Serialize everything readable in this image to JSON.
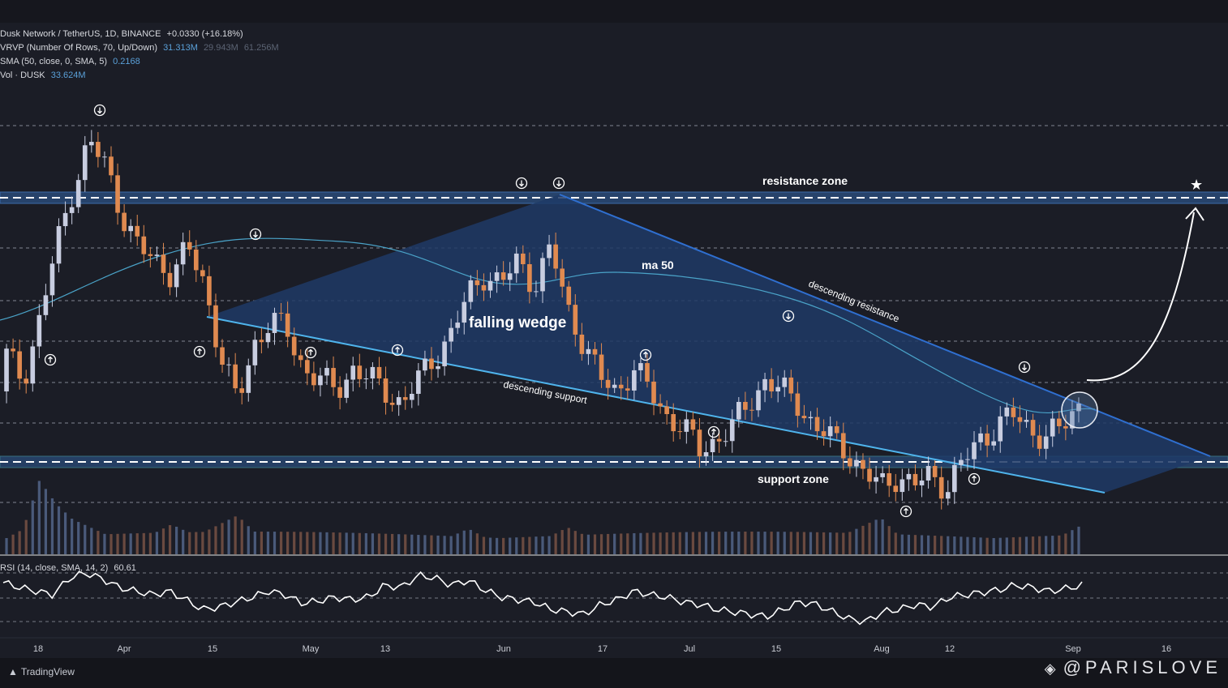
{
  "legend": {
    "line1_title": "Dusk Network / TetherUS, 1D, BINANCE",
    "line1_change": "+0.0330 (+16.18%)",
    "line2_title": "VRVP (Number Of Rows, 70, Up/Down)",
    "line2_v1": "31.313M",
    "line2_v2": "29.943M",
    "line2_v3": "61.256M",
    "line3_title": "SMA (50, close, 0, SMA, 5)",
    "line3_v": "0.2168",
    "line4_title": "Vol · DUSK",
    "line4_v": "33.624M"
  },
  "rsi_label": "RSI (14, close, SMA, 14, 2)",
  "rsi_value": "60.61",
  "annotations": {
    "resistance_zone": "resistance zone",
    "support_zone": "support zone",
    "falling_wedge": "falling wedge",
    "ma50": "ma 50",
    "descending_resistance": "descending resistance",
    "descending_support": "descending support",
    "star": "★"
  },
  "brand": "TradingView",
  "watermark": "@PARISLOVE",
  "colors": {
    "up": "#c8cde0",
    "down": "#e08a50",
    "ma": "#4aa3c8",
    "wedge_fill": "#1f3a66",
    "resistance_line": "#2f6fd0",
    "support_line": "#4fb4ec",
    "zone_fill": "#27436b"
  },
  "chart_data": {
    "type": "candlestick",
    "x_ticks": [
      "18",
      "Apr",
      "15",
      "May",
      "13",
      "Jun",
      "17",
      "Jul",
      "15",
      "Aug",
      "12",
      "Sep",
      "16"
    ],
    "price_scale": "linear",
    "candles_pattern": [
      {
        "o": 0.19,
        "c": 0.22
      },
      {
        "o": 0.22,
        "c": 0.2
      },
      {
        "o": 0.2,
        "c": 0.25
      },
      {
        "o": 0.25,
        "c": 0.31
      },
      {
        "o": 0.31,
        "c": 0.36
      },
      {
        "o": 0.36,
        "c": 0.4
      },
      {
        "o": 0.4,
        "c": 0.38
      },
      {
        "o": 0.38,
        "c": 0.34
      },
      {
        "o": 0.34,
        "c": 0.31
      },
      {
        "o": 0.31,
        "c": 0.3
      },
      {
        "o": 0.3,
        "c": 0.29
      },
      {
        "o": 0.29,
        "c": 0.31
      },
      {
        "o": 0.31,
        "c": 0.28
      },
      {
        "o": 0.28,
        "c": 0.22
      },
      {
        "o": 0.22,
        "c": 0.18
      },
      {
        "o": 0.18,
        "c": 0.23
      },
      {
        "o": 0.23,
        "c": 0.25
      },
      {
        "o": 0.25,
        "c": 0.24
      },
      {
        "o": 0.24,
        "c": 0.21
      },
      {
        "o": 0.21,
        "c": 0.2
      },
      {
        "o": 0.2,
        "c": 0.19
      },
      {
        "o": 0.19,
        "c": 0.21
      },
      {
        "o": 0.21,
        "c": 0.2
      },
      {
        "o": 0.2,
        "c": 0.19
      },
      {
        "o": 0.19,
        "c": 0.18
      },
      {
        "o": 0.18,
        "c": 0.2
      },
      {
        "o": 0.2,
        "c": 0.22
      },
      {
        "o": 0.22,
        "c": 0.24
      },
      {
        "o": 0.24,
        "c": 0.27
      },
      {
        "o": 0.27,
        "c": 0.29
      },
      {
        "o": 0.29,
        "c": 0.28
      },
      {
        "o": 0.28,
        "c": 0.3
      },
      {
        "o": 0.3,
        "c": 0.28
      },
      {
        "o": 0.28,
        "c": 0.31
      },
      {
        "o": 0.31,
        "c": 0.26
      },
      {
        "o": 0.26,
        "c": 0.23
      },
      {
        "o": 0.23,
        "c": 0.2
      },
      {
        "o": 0.2,
        "c": 0.19
      },
      {
        "o": 0.19,
        "c": 0.21
      },
      {
        "o": 0.21,
        "c": 0.19
      },
      {
        "o": 0.19,
        "c": 0.17
      },
      {
        "o": 0.17,
        "c": 0.16
      },
      {
        "o": 0.16,
        "c": 0.14
      },
      {
        "o": 0.14,
        "c": 0.15
      },
      {
        "o": 0.15,
        "c": 0.16
      },
      {
        "o": 0.16,
        "c": 0.18
      },
      {
        "o": 0.18,
        "c": 0.2
      },
      {
        "o": 0.2,
        "c": 0.19
      },
      {
        "o": 0.19,
        "c": 0.18
      },
      {
        "o": 0.18,
        "c": 0.16
      },
      {
        "o": 0.16,
        "c": 0.15
      },
      {
        "o": 0.15,
        "c": 0.14
      },
      {
        "o": 0.14,
        "c": 0.12
      },
      {
        "o": 0.12,
        "c": 0.11
      },
      {
        "o": 0.11,
        "c": 0.12
      },
      {
        "o": 0.12,
        "c": 0.11
      },
      {
        "o": 0.11,
        "c": 0.12
      },
      {
        "o": 0.12,
        "c": 0.11
      },
      {
        "o": 0.11,
        "c": 0.13
      },
      {
        "o": 0.13,
        "c": 0.15
      },
      {
        "o": 0.15,
        "c": 0.16
      },
      {
        "o": 0.16,
        "c": 0.17
      },
      {
        "o": 0.17,
        "c": 0.16
      },
      {
        "o": 0.16,
        "c": 0.15
      },
      {
        "o": 0.15,
        "c": 0.16
      },
      {
        "o": 0.16,
        "c": 0.18
      }
    ],
    "volume_pattern": [
      2,
      3,
      9,
      6,
      4,
      3,
      2,
      2,
      2,
      2,
      3,
      2,
      2,
      3,
      4,
      2,
      2,
      2,
      2,
      2,
      2,
      2,
      2,
      2,
      2,
      2,
      2,
      2,
      3,
      2,
      2,
      2,
      2,
      2,
      3,
      2,
      2,
      2,
      2,
      2,
      2,
      2,
      2,
      2,
      2,
      2,
      2,
      2,
      2,
      2,
      2,
      2,
      3,
      4,
      2,
      2,
      2,
      2,
      2,
      2,
      2,
      2,
      2,
      2,
      2,
      3
    ],
    "rsi_pattern": [
      62,
      58,
      55,
      52,
      66,
      70,
      65,
      58,
      55,
      52,
      55,
      48,
      40,
      42,
      46,
      50,
      55,
      52,
      45,
      47,
      50,
      48,
      50,
      60,
      58,
      68,
      66,
      60,
      64,
      56,
      50,
      48,
      46,
      40,
      38,
      36,
      44,
      48,
      55,
      52,
      50,
      46,
      44,
      40,
      38,
      36,
      34,
      40,
      46,
      44,
      38,
      32,
      30,
      38,
      40,
      44,
      42,
      50,
      52,
      54,
      56,
      60,
      58,
      55,
      57,
      60
    ],
    "annotations_marks": {
      "wedge": "falling wedge",
      "ma": "ma 50"
    }
  }
}
